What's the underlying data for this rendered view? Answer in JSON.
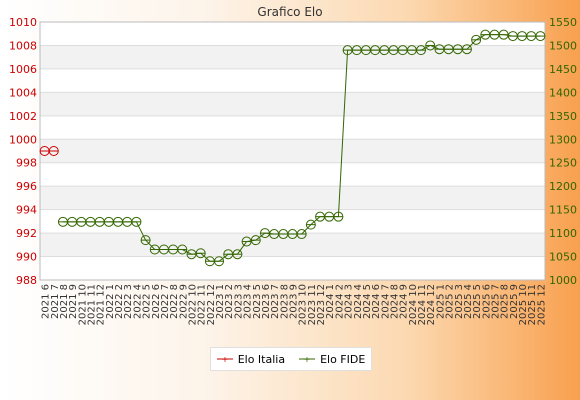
{
  "chart_data": {
    "type": "line",
    "title": "Grafico Elo",
    "x": [
      "2021 6",
      "2021 7",
      "2021 8",
      "2021 9",
      "2021 10",
      "2021 11",
      "2021 12",
      "2022 1",
      "2022 2",
      "2022 3",
      "2022 4",
      "2022 5",
      "2022 6",
      "2022 7",
      "2022 8",
      "2022 9",
      "2022 10",
      "2022 11",
      "2022 12",
      "2023 1",
      "2023 2",
      "2023 3",
      "2023 4",
      "2023 5",
      "2023 6",
      "2023 7",
      "2023 8",
      "2023 9",
      "2023 10",
      "2023 11",
      "2023 12",
      "2024 1",
      "2024 2",
      "2024 3",
      "2024 4",
      "2024 5",
      "2024 6",
      "2024 7",
      "2024 8",
      "2024 9",
      "2024 10",
      "2024 11",
      "2024 12",
      "2025 1",
      "2025 2",
      "2025 3",
      "2025 4",
      "2025 5",
      "2025 6",
      "2025 7",
      "2025 8",
      "2025 9",
      "2025 10",
      "2025 11",
      "2025 12"
    ],
    "y_left": {
      "min": 988,
      "max": 1010,
      "ticks": [
        988,
        990,
        992,
        994,
        996,
        998,
        1000,
        1002,
        1004,
        1006,
        1008,
        1010
      ],
      "color": "#cc0000"
    },
    "y_right": {
      "min": 1000,
      "max": 1550,
      "ticks": [
        1000,
        1050,
        1100,
        1150,
        1200,
        1250,
        1300,
        1350,
        1400,
        1450,
        1500,
        1550
      ],
      "color": "#336600"
    },
    "series": [
      {
        "name": "Elo Italia",
        "axis": "left",
        "color": "#cc0000",
        "values": [
          999,
          999,
          null,
          null,
          null,
          null,
          null,
          null,
          null,
          null,
          null,
          null,
          null,
          null,
          null,
          null,
          null,
          null,
          null,
          null,
          null,
          null,
          null,
          null,
          null,
          null,
          null,
          null,
          null,
          null,
          null,
          null,
          null,
          null,
          null,
          null,
          null,
          null,
          null,
          null,
          null,
          null,
          null,
          null,
          null,
          null,
          null,
          null,
          null,
          null,
          null,
          null,
          null,
          null,
          null
        ]
      },
      {
        "name": "Elo FIDE",
        "axis": "right",
        "color": "#336600",
        "values": [
          null,
          null,
          1124,
          1124,
          1124,
          1124,
          1124,
          1124,
          1124,
          1124,
          1124,
          1085,
          1065,
          1065,
          1065,
          1065,
          1055,
          1057,
          1040,
          1040,
          1055,
          1055,
          1082,
          1085,
          1100,
          1098,
          1098,
          1098,
          1098,
          1118,
          1135,
          1135,
          1135,
          1490,
          1490,
          1490,
          1490,
          1490,
          1490,
          1490,
          1490,
          1490,
          1500,
          1492,
          1492,
          1492,
          1492,
          1512,
          1523,
          1523,
          1523,
          1520,
          1520,
          1520,
          1520
        ]
      }
    ],
    "grid": true,
    "legend_position": "bottom-center"
  }
}
